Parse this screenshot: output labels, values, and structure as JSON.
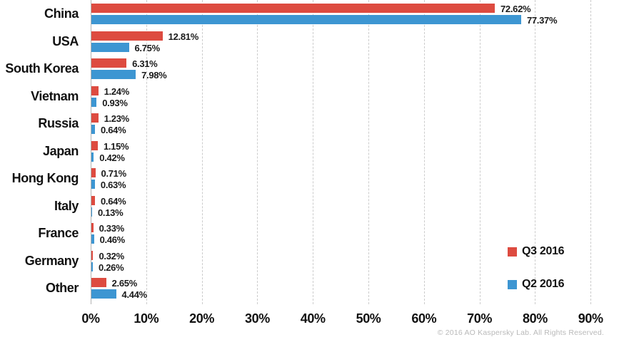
{
  "chart_data": {
    "type": "bar",
    "orientation": "horizontal",
    "title": "",
    "categories": [
      "China",
      "USA",
      "South Korea",
      "Vietnam",
      "Russia",
      "Japan",
      "Hong Kong",
      "Italy",
      "France",
      "Germany",
      "Other"
    ],
    "series": [
      {
        "name": "Q3 2016",
        "color": "#dd4b40",
        "values": [
          72.62,
          12.81,
          6.31,
          1.24,
          1.23,
          1.15,
          0.71,
          0.64,
          0.33,
          0.32,
          2.65
        ]
      },
      {
        "name": "Q2 2016",
        "color": "#3d96d2",
        "values": [
          77.37,
          6.75,
          7.98,
          0.93,
          0.64,
          0.42,
          0.63,
          0.13,
          0.46,
          0.26,
          4.44
        ]
      }
    ],
    "value_suffix": "%",
    "value_decimals": 2,
    "xlim": [
      0,
      90
    ],
    "x_ticks": [
      "0%",
      "10%",
      "20%",
      "30%",
      "40%",
      "50%",
      "60%",
      "70%",
      "80%",
      "90%"
    ],
    "grid": "dashed-vertical",
    "axis_line_color": "#b3b3b3",
    "gridline_color": "#cccccc",
    "legend_position": "right-lower"
  },
  "footer": {
    "copyright": "© 2016 AO Kaspersky Lab. All Rights Reserved."
  }
}
